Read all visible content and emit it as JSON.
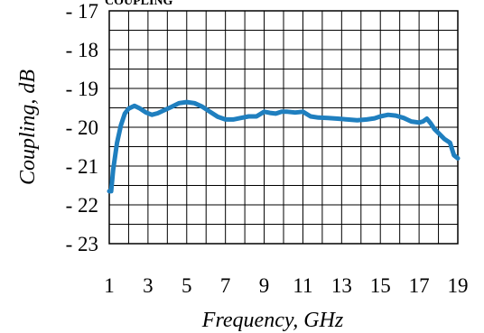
{
  "chart_data": {
    "type": "line",
    "title": "COUPLING",
    "xlabel": "Frequency, GHz",
    "ylabel": "Coupling, dB",
    "xlim": [
      1,
      19
    ],
    "ylim": [
      17,
      23
    ],
    "y_inverted": true,
    "grid": true,
    "x_ticks": [
      1,
      3,
      5,
      7,
      9,
      11,
      13,
      15,
      17,
      19
    ],
    "y_ticks": [
      17,
      18,
      19,
      20,
      21,
      22,
      23
    ],
    "y_tick_prefix": "-",
    "color": "#1f7fbf",
    "series": [
      {
        "x": [
          1.0,
          1.1,
          1.2,
          1.4,
          1.6,
          1.8,
          2.0,
          2.3,
          2.6,
          2.9,
          3.2,
          3.5,
          3.8,
          4.2,
          4.6,
          5.0,
          5.4,
          5.8,
          6.2,
          6.6,
          7.0,
          7.4,
          7.8,
          8.2,
          8.6,
          9.0,
          9.3,
          9.6,
          9.9,
          10.2,
          10.6,
          11.0,
          11.4,
          11.8,
          12.3,
          12.8,
          13.3,
          13.8,
          14.3,
          14.7,
          15.0,
          15.4,
          15.8,
          16.2,
          16.6,
          17.0,
          17.2,
          17.4,
          17.6,
          17.8,
          18.0,
          18.3,
          18.6,
          18.8,
          19.0
        ],
        "values": [
          21.65,
          21.65,
          21.1,
          20.4,
          19.95,
          19.65,
          19.52,
          19.45,
          19.52,
          19.62,
          19.68,
          19.64,
          19.57,
          19.48,
          19.38,
          19.35,
          19.38,
          19.47,
          19.6,
          19.73,
          19.8,
          19.8,
          19.76,
          19.72,
          19.72,
          19.6,
          19.63,
          19.65,
          19.6,
          19.6,
          19.62,
          19.6,
          19.72,
          19.75,
          19.76,
          19.78,
          19.8,
          19.82,
          19.8,
          19.77,
          19.72,
          19.68,
          19.7,
          19.76,
          19.85,
          19.88,
          19.85,
          19.78,
          19.9,
          20.05,
          20.15,
          20.3,
          20.4,
          20.72,
          20.8
        ]
      }
    ]
  }
}
